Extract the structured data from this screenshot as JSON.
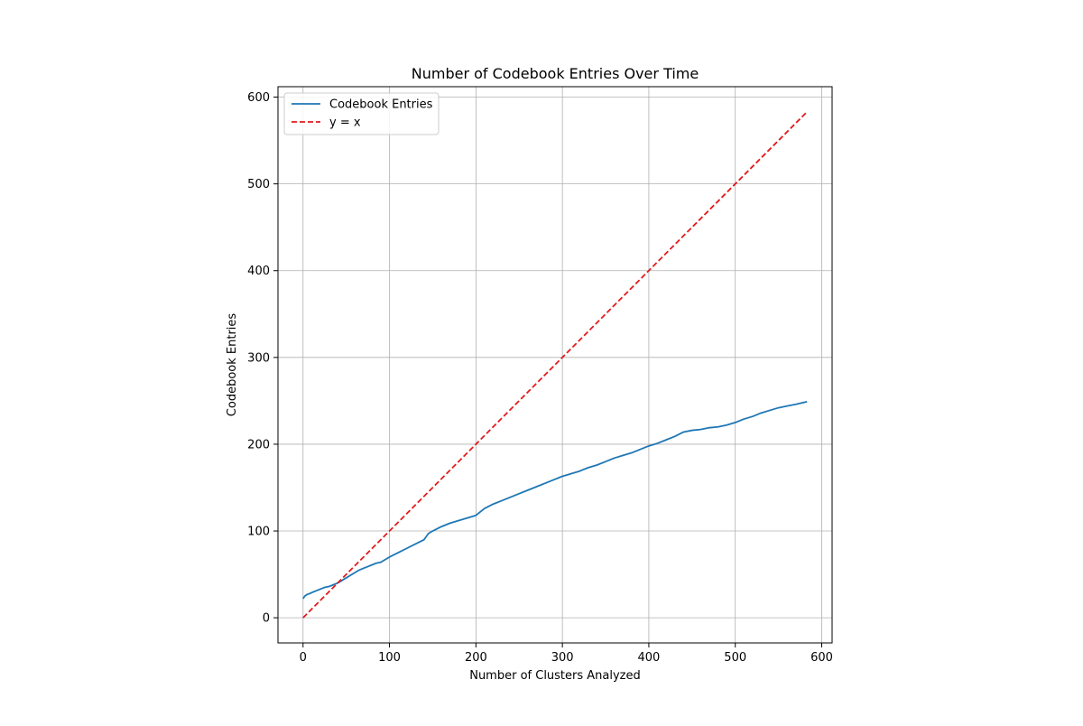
{
  "chart_data": {
    "type": "line",
    "title": "Number of Codebook Entries Over Time",
    "xlabel": "Number of Clusters Analyzed",
    "ylabel": "Codebook Entries",
    "xlim": [
      -29,
      612
    ],
    "ylim": [
      -29,
      612
    ],
    "xticks": [
      0,
      100,
      200,
      300,
      400,
      500,
      600
    ],
    "yticks": [
      0,
      100,
      200,
      300,
      400,
      500,
      600
    ],
    "grid": true,
    "legend_position": "top-left",
    "series": [
      {
        "name": "Codebook Entries",
        "color": "#1f77b4",
        "style": "solid",
        "x": [
          0,
          2,
          5,
          8,
          10,
          15,
          20,
          25,
          30,
          35,
          40,
          45,
          50,
          55,
          60,
          65,
          70,
          75,
          80,
          85,
          90,
          95,
          100,
          110,
          120,
          130,
          140,
          145,
          150,
          160,
          170,
          180,
          190,
          200,
          210,
          220,
          230,
          240,
          250,
          260,
          270,
          280,
          290,
          300,
          310,
          320,
          330,
          340,
          350,
          360,
          370,
          380,
          390,
          400,
          410,
          420,
          430,
          440,
          450,
          460,
          470,
          480,
          490,
          500,
          510,
          520,
          530,
          540,
          550,
          560,
          570,
          583
        ],
        "y": [
          22,
          25,
          27,
          28,
          29,
          31,
          33,
          35,
          36,
          38,
          40,
          43,
          46,
          49,
          52,
          55,
          57,
          59,
          61,
          63,
          64,
          67,
          70,
          75,
          80,
          85,
          90,
          97,
          100,
          105,
          109,
          112,
          115,
          118,
          126,
          131,
          135,
          139,
          143,
          147,
          151,
          155,
          159,
          163,
          166,
          169,
          173,
          176,
          180,
          184,
          187,
          190,
          194,
          198,
          201,
          205,
          209,
          214,
          216,
          217,
          219,
          220,
          222,
          225,
          229,
          232,
          236,
          239,
          242,
          244,
          246,
          249
        ]
      },
      {
        "name": "y = x",
        "color": "#e31a1c",
        "style": "dashed",
        "x": [
          0,
          583
        ],
        "y": [
          0,
          583
        ]
      }
    ]
  }
}
